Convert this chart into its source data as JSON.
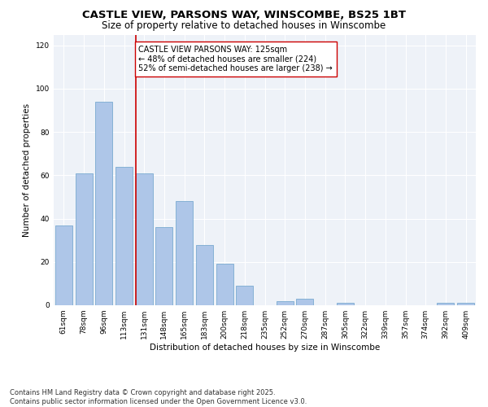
{
  "title_line1": "CASTLE VIEW, PARSONS WAY, WINSCOMBE, BS25 1BT",
  "title_line2": "Size of property relative to detached houses in Winscombe",
  "bar_labels": [
    "61sqm",
    "78sqm",
    "96sqm",
    "113sqm",
    "131sqm",
    "148sqm",
    "165sqm",
    "183sqm",
    "200sqm",
    "218sqm",
    "235sqm",
    "252sqm",
    "270sqm",
    "287sqm",
    "305sqm",
    "322sqm",
    "339sqm",
    "357sqm",
    "374sqm",
    "392sqm",
    "409sqm"
  ],
  "bar_values": [
    37,
    61,
    94,
    64,
    61,
    36,
    48,
    28,
    19,
    9,
    0,
    2,
    3,
    0,
    1,
    0,
    0,
    0,
    0,
    1,
    1
  ],
  "bar_color": "#aec6e8",
  "bar_edgecolor": "#7aaad0",
  "vline_color": "#cc0000",
  "vline_index": 3.575,
  "annotation_text": "CASTLE VIEW PARSONS WAY: 125sqm\n← 48% of detached houses are smaller (224)\n52% of semi-detached houses are larger (238) →",
  "annotation_box_edgecolor": "#cc0000",
  "annotation_box_facecolor": "#ffffff",
  "ylabel": "Number of detached properties",
  "xlabel": "Distribution of detached houses by size in Winscombe",
  "ylim": [
    0,
    125
  ],
  "yticks": [
    0,
    20,
    40,
    60,
    80,
    100,
    120
  ],
  "footnote1": "Contains HM Land Registry data © Crown copyright and database right 2025.",
  "footnote2": "Contains public sector information licensed under the Open Government Licence v3.0.",
  "background_color": "#eef2f8",
  "grid_color": "#ffffff",
  "title_fontsize": 9.5,
  "subtitle_fontsize": 8.5,
  "axis_label_fontsize": 7.5,
  "tick_fontsize": 6.5,
  "annotation_fontsize": 7,
  "footnote_fontsize": 6
}
